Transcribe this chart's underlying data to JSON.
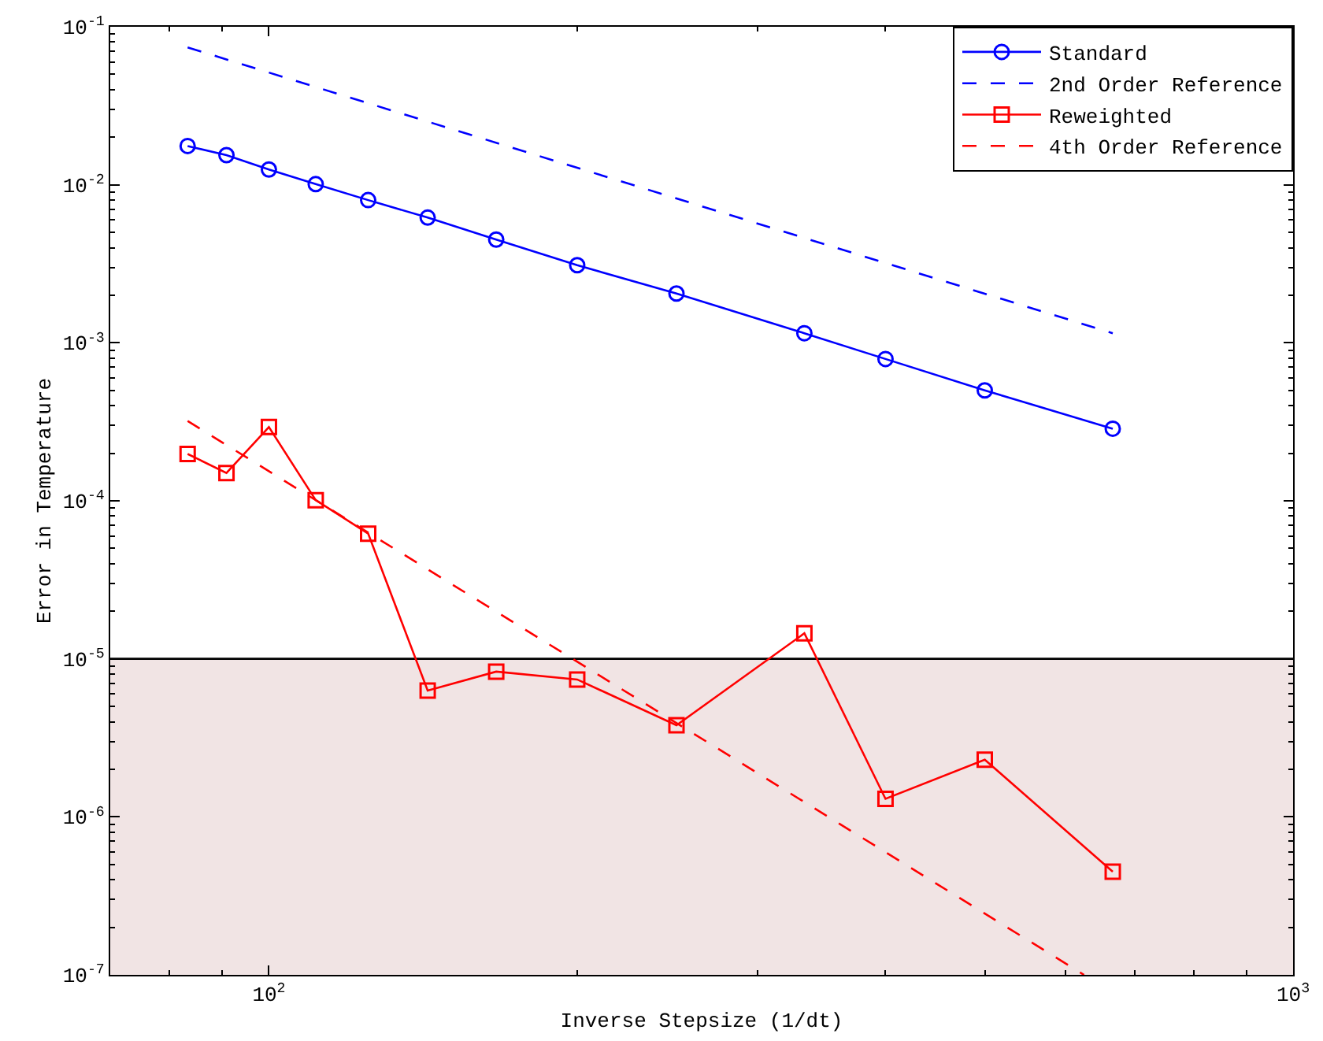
{
  "chart_data": {
    "type": "line",
    "xlabel": "Inverse Stepsize (1/dt)",
    "ylabel": "Error in Temperature",
    "log": "xy",
    "grid": false,
    "legend": "top right",
    "xlim": [
      70,
      1000
    ],
    "xticks": [
      {
        "value": 100,
        "label": "10$^{2}$"
      },
      {
        "value": 1000,
        "label": "10$^{3}$"
      }
    ],
    "ylim": [
      1e-07,
      0.1
    ],
    "yticks": [
      {
        "value": 1e-07,
        "label": "10$^{-7}$"
      },
      {
        "value": 1e-06,
        "label": "10$^{-6}$"
      },
      {
        "value": 1e-05,
        "label": "10$^{-5}$"
      },
      {
        "value": 0.0001,
        "label": "10$^{-4}$"
      },
      {
        "value": 0.001,
        "label": "10$^{-3}$"
      },
      {
        "value": 0.01,
        "label": "10$^{-2}$"
      },
      {
        "value": 0.1,
        "label": "10$^{-1}$"
      }
    ],
    "series": [
      {
        "name": "Standard",
        "color": "#0000ff",
        "marker": "circle",
        "line_style": "solid",
        "x": [
          83.3,
          90.9,
          100,
          111.1,
          125,
          142.9,
          166.7,
          200,
          250,
          333.3,
          400,
          500,
          666.7
        ],
        "values": [
          0.0176,
          0.0154,
          0.0125,
          0.0101,
          0.008,
          0.0062,
          0.0045,
          0.0031,
          0.00205,
          0.00115,
          0.00079,
          0.0005,
          0.000286
        ]
      },
      {
        "name": "2nd Order Reference",
        "color": "#0000ff",
        "marker": "none",
        "line_style": "dashed",
        "x": [
          83.3,
          666.7
        ],
        "values": [
          0.074,
          0.00115
        ]
      },
      {
        "name": "Reweighted",
        "color": "#ff0000",
        "marker": "square",
        "line_style": "solid",
        "x": [
          83.3,
          90.9,
          100,
          111.1,
          125,
          142.9,
          166.7,
          200,
          250,
          333.3,
          400,
          500,
          666.7
        ],
        "values": [
          0.000198,
          0.00015,
          0.000293,
          0.000101,
          6.2e-05,
          6.3e-06,
          8.3e-06,
          7.4e-06,
          3.8e-06,
          1.45e-05,
          1.3e-06,
          2.3e-06,
          4.5e-07
        ]
      },
      {
        "name": "4th Order Reference",
        "color": "#ff0000",
        "marker": "none",
        "line_style": "dashed",
        "x": [
          83.3,
          625
        ],
        "values": [
          0.00032,
          1e-07
        ]
      }
    ],
    "bands": [
      {
        "axis": "y",
        "from": 1e-07,
        "to": 1e-05,
        "color": "#f1e4e4"
      }
    ],
    "ref_lines": [
      {
        "axis": "y",
        "value": 1e-05,
        "color": "#000000"
      }
    ]
  }
}
